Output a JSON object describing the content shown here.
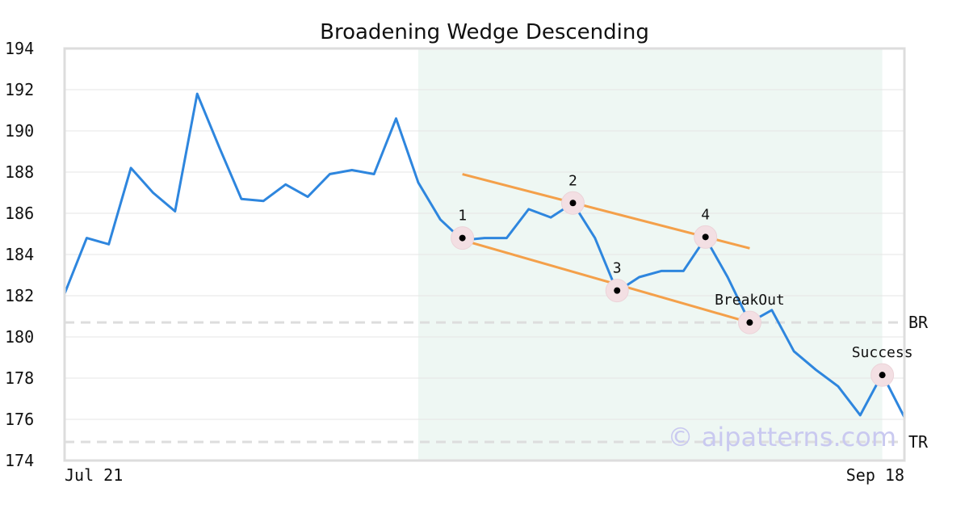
{
  "chart_data": {
    "type": "line",
    "title": "Broadening Wedge Descending",
    "x_tick_labels": [
      "Jul 21",
      "Sep 18"
    ],
    "ylim": [
      174,
      194
    ],
    "yticks": [
      174,
      176,
      178,
      180,
      182,
      184,
      186,
      188,
      190,
      192,
      194
    ],
    "grid": "horizontal",
    "series": [
      {
        "values": [
          182.1,
          184.8,
          184.5,
          188.2,
          187.0,
          186.1,
          191.8,
          189.2,
          186.7,
          186.6,
          187.4,
          186.8,
          187.9,
          188.1,
          187.9,
          190.6,
          187.5,
          185.7,
          184.7,
          184.8,
          184.8,
          186.2,
          185.8,
          186.5,
          184.8,
          182.2,
          182.9,
          183.2,
          183.2,
          184.8,
          182.9,
          180.7,
          181.3,
          179.3,
          178.4,
          177.6,
          176.2,
          178.2,
          176.1
        ],
        "color": "#2e86de"
      }
    ],
    "pattern_region": {
      "from_index": 16,
      "to_index": 37,
      "color": "#eef7f3"
    },
    "trendlines": [
      {
        "from": {
          "index": 18,
          "value": 187.9
        },
        "to": {
          "index": 31,
          "value": 184.3
        },
        "color": "#f4a04a"
      },
      {
        "from": {
          "index": 18,
          "value": 184.7
        },
        "to": {
          "index": 31,
          "value": 180.7
        },
        "color": "#f4a04a"
      }
    ],
    "points": [
      {
        "label": "1",
        "index": 18,
        "value": 184.8
      },
      {
        "label": "2",
        "index": 23,
        "value": 186.5
      },
      {
        "label": "3",
        "index": 25,
        "value": 182.25
      },
      {
        "label": "4",
        "index": 29,
        "value": 184.85
      },
      {
        "label": "BreakOut",
        "index": 31,
        "value": 180.7
      },
      {
        "label": "Success",
        "index": 37,
        "value": 178.15
      }
    ],
    "levels": [
      {
        "label": "BR",
        "value": 180.7
      },
      {
        "label": "TR",
        "value": 174.9
      }
    ],
    "watermark": "© aipatterns.com"
  }
}
